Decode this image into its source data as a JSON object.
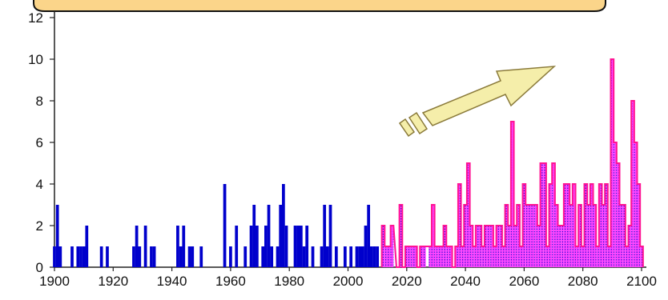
{
  "chart_data": {
    "type": "bar",
    "title": "",
    "xlabel": "",
    "ylabel": "",
    "xlim": [
      1900,
      2100
    ],
    "ylim": [
      0,
      12
    ],
    "x_ticks": [
      1900,
      1920,
      1940,
      1960,
      1980,
      2000,
      2020,
      2040,
      2060,
      2080,
      2100
    ],
    "y_ticks": [
      0,
      2,
      4,
      6,
      8,
      10,
      12
    ],
    "grid": false,
    "legend": "none",
    "colors": {
      "observed": "#0000cc",
      "projected_edge": "#ff1493",
      "projected_fill": "#ff44ff",
      "projected_dots": "#0000cc",
      "arrow_fill": "#f5eeaa",
      "arrow_edge": "#8a7a3a",
      "banner_fill": "#fbd58a",
      "banner_edge": "#111111"
    },
    "series": [
      {
        "values_by_year": [
          [
            1900,
            1
          ],
          [
            1901,
            3
          ],
          [
            1902,
            1
          ],
          [
            1906,
            1
          ],
          [
            1908,
            1
          ],
          [
            1909,
            1
          ],
          [
            1910,
            1
          ],
          [
            1911,
            2
          ],
          [
            1916,
            1
          ],
          [
            1918,
            1
          ],
          [
            1927,
            1
          ],
          [
            1928,
            2
          ],
          [
            1929,
            1
          ],
          [
            1931,
            2
          ],
          [
            1933,
            1
          ],
          [
            1934,
            1
          ],
          [
            1942,
            2
          ],
          [
            1943,
            1
          ],
          [
            1944,
            2
          ],
          [
            1946,
            1
          ],
          [
            1947,
            1
          ],
          [
            1950,
            1
          ],
          [
            1958,
            4
          ],
          [
            1960,
            1
          ],
          [
            1962,
            2
          ],
          [
            1965,
            1
          ],
          [
            1967,
            2
          ],
          [
            1968,
            3
          ],
          [
            1969,
            2
          ],
          [
            1971,
            1
          ],
          [
            1972,
            2
          ],
          [
            1973,
            3
          ],
          [
            1974,
            1
          ],
          [
            1976,
            1
          ],
          [
            1977,
            3
          ],
          [
            1978,
            4
          ],
          [
            1979,
            2
          ],
          [
            1982,
            2
          ],
          [
            1983,
            2
          ],
          [
            1984,
            2
          ],
          [
            1985,
            1
          ],
          [
            1986,
            2
          ],
          [
            1988,
            1
          ],
          [
            1991,
            1
          ],
          [
            1992,
            3
          ],
          [
            1993,
            1
          ],
          [
            1994,
            3
          ],
          [
            1996,
            1
          ],
          [
            1999,
            1
          ],
          [
            2001,
            1
          ],
          [
            2003,
            1
          ],
          [
            2004,
            1
          ],
          [
            2005,
            1
          ],
          [
            2006,
            2
          ],
          [
            2007,
            3
          ],
          [
            2008,
            1
          ],
          [
            2009,
            1
          ],
          [
            2010,
            1
          ]
        ]
      },
      {
        "values_by_year": [
          [
            2012,
            2
          ],
          [
            2013,
            1
          ],
          [
            2014,
            1
          ],
          [
            2015,
            2
          ],
          [
            2017,
            0
          ],
          [
            2018,
            3
          ],
          [
            2019,
            0
          ],
          [
            2020,
            1
          ],
          [
            2021,
            1
          ],
          [
            2022,
            1
          ],
          [
            2023,
            1
          ],
          [
            2024,
            0
          ],
          [
            2025,
            1
          ],
          [
            2026,
            1
          ],
          [
            2028,
            1
          ],
          [
            2029,
            3
          ],
          [
            2030,
            1
          ],
          [
            2031,
            1
          ],
          [
            2032,
            1
          ],
          [
            2033,
            2
          ],
          [
            2034,
            1
          ],
          [
            2035,
            1
          ],
          [
            2036,
            0
          ],
          [
            2037,
            1
          ],
          [
            2038,
            4
          ],
          [
            2039,
            1
          ],
          [
            2040,
            3
          ],
          [
            2041,
            5
          ],
          [
            2042,
            2
          ],
          [
            2043,
            1
          ],
          [
            2044,
            2
          ],
          [
            2045,
            2
          ],
          [
            2046,
            1
          ],
          [
            2047,
            2
          ],
          [
            2048,
            2
          ],
          [
            2049,
            2
          ],
          [
            2050,
            1
          ],
          [
            2051,
            2
          ],
          [
            2052,
            2
          ],
          [
            2053,
            1
          ],
          [
            2054,
            3
          ],
          [
            2055,
            2
          ],
          [
            2056,
            7
          ],
          [
            2057,
            2
          ],
          [
            2058,
            3
          ],
          [
            2059,
            1
          ],
          [
            2060,
            4
          ],
          [
            2061,
            3
          ],
          [
            2062,
            3
          ],
          [
            2063,
            3
          ],
          [
            2064,
            3
          ],
          [
            2065,
            2
          ],
          [
            2066,
            5
          ],
          [
            2067,
            5
          ],
          [
            2068,
            1
          ],
          [
            2069,
            4
          ],
          [
            2070,
            5
          ],
          [
            2071,
            3
          ],
          [
            2072,
            2
          ],
          [
            2073,
            2
          ],
          [
            2074,
            4
          ],
          [
            2075,
            4
          ],
          [
            2076,
            3
          ],
          [
            2077,
            4
          ],
          [
            2078,
            1
          ],
          [
            2079,
            3
          ],
          [
            2080,
            1
          ],
          [
            2081,
            4
          ],
          [
            2082,
            3
          ],
          [
            2083,
            4
          ],
          [
            2084,
            3
          ],
          [
            2085,
            1
          ],
          [
            2086,
            4
          ],
          [
            2087,
            3
          ],
          [
            2088,
            4
          ],
          [
            2089,
            1
          ],
          [
            2090,
            10
          ],
          [
            2091,
            6
          ],
          [
            2092,
            5
          ],
          [
            2093,
            3
          ],
          [
            2094,
            3
          ],
          [
            2095,
            1
          ],
          [
            2096,
            2
          ],
          [
            2097,
            8
          ],
          [
            2098,
            6
          ],
          [
            2099,
            4
          ],
          [
            2100,
            1
          ]
        ]
      }
    ]
  }
}
